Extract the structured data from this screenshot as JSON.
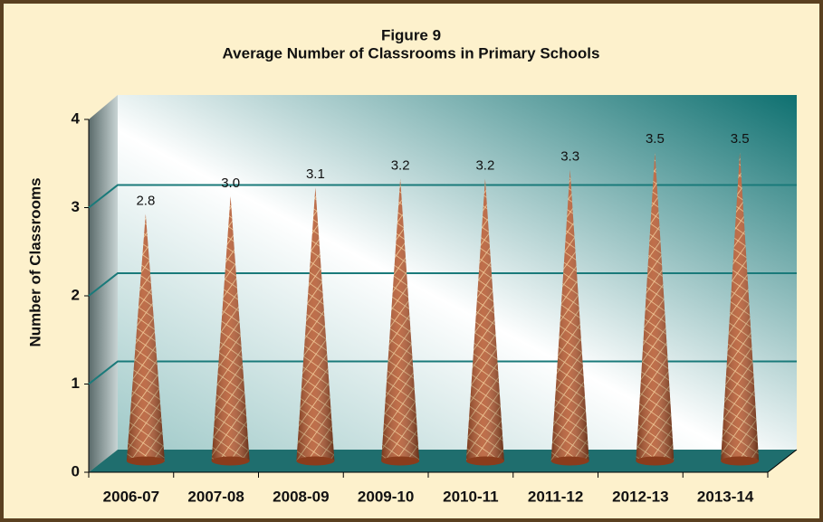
{
  "chart_data": {
    "type": "cone",
    "title": "Figure 9",
    "subtitle": "Average Number of Classrooms in Primary Schools",
    "y_label": "Number of Classrooms",
    "categories": [
      "2006-07",
      "2007-08",
      "2008-09",
      "2009-10",
      "2010-11",
      "2011-12",
      "2012-13",
      "2013-14"
    ],
    "values": [
      2.8,
      3.0,
      3.1,
      3.2,
      3.2,
      3.3,
      3.5,
      3.5
    ],
    "value_labels": [
      "2.8",
      "3.0",
      "3.1",
      "3.2",
      "3.2",
      "3.3",
      "3.5",
      "3.5"
    ],
    "color": "#b4552a",
    "ylim": [
      0,
      4
    ],
    "yticks": [
      0,
      1,
      2,
      3,
      4
    ],
    "grid": true
  }
}
